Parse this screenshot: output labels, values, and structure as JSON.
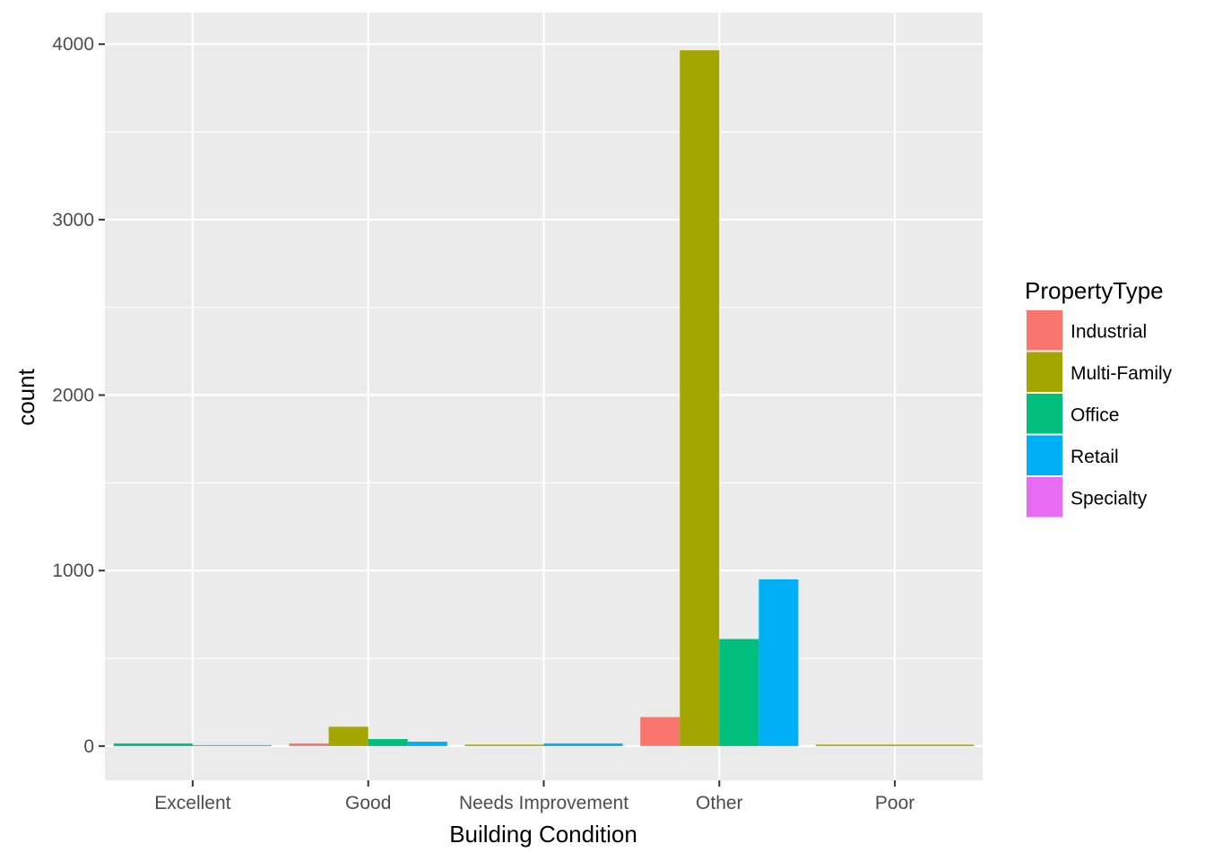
{
  "chart_data": {
    "type": "bar",
    "xlabel": "Building Condition",
    "ylabel": "count",
    "categories": [
      "Excellent",
      "Good",
      "Needs Improvement",
      "Other",
      "Poor"
    ],
    "yticks": [
      "0",
      "1000",
      "2000",
      "3000",
      "4000"
    ],
    "ylim": [
      -195,
      4180
    ],
    "grid": true,
    "legend": {
      "title": "PropertyType",
      "position": "right",
      "entries": [
        "Industrial",
        "Multi-Family",
        "Office",
        "Retail",
        "Specialty"
      ]
    },
    "colors": {
      "Industrial": "#F8766D",
      "Multi-Family": "#A3A500",
      "Office": "#00BF7D",
      "Retail": "#00B0F6",
      "Specialty": "#E76BF3",
      "panel": "#EBEBEB",
      "grid": "#FFFFFF"
    },
    "bars": [
      {
        "category": "Excellent",
        "groups": [
          {
            "series": "Office",
            "value": 15
          },
          {
            "series": "Retail",
            "value": 5
          }
        ]
      },
      {
        "category": "Good",
        "groups": [
          {
            "series": "Industrial",
            "value": 15
          },
          {
            "series": "Multi-Family",
            "value": 110
          },
          {
            "series": "Office",
            "value": 40
          },
          {
            "series": "Retail",
            "value": 25
          }
        ]
      },
      {
        "category": "Needs Improvement",
        "groups": [
          {
            "series": "Multi-Family",
            "value": 8
          },
          {
            "series": "Retail",
            "value": 15
          }
        ]
      },
      {
        "category": "Other",
        "groups": [
          {
            "series": "Industrial",
            "value": 165
          },
          {
            "series": "Multi-Family",
            "value": 3965
          },
          {
            "series": "Office",
            "value": 610
          },
          {
            "series": "Retail",
            "value": 950
          }
        ]
      },
      {
        "category": "Poor",
        "groups": [
          {
            "series": "Multi-Family",
            "value": 8
          }
        ]
      }
    ]
  }
}
